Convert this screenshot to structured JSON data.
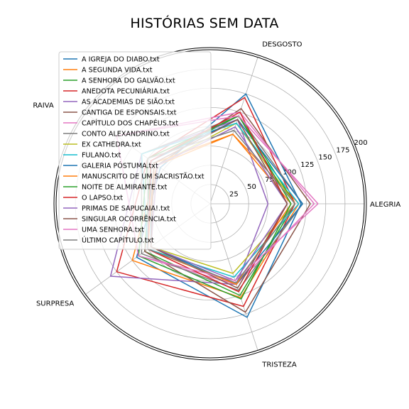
{
  "chart_data": {
    "type": "radar",
    "title": "HISTÓRIAS SEM DATA",
    "axes": [
      "ALEGRIA",
      "DESGOSTO",
      "RAIVA",
      "SURPRESA",
      "TRISTEZA"
    ],
    "rticks": [
      25,
      50,
      75,
      100,
      125,
      150,
      175,
      200
    ],
    "rlim": [
      0,
      200
    ],
    "grid": true,
    "legend_position": "upper-left",
    "series": [
      {
        "name": "A IGREJA DO DIABO.txt",
        "color": "#1f77b4",
        "values": [
          118,
          150,
          80,
          118,
          155
        ]
      },
      {
        "name": "A SEGUNDA VIDA.txt",
        "color": "#ff7f0e",
        "values": [
          115,
          95,
          85,
          125,
          128
        ]
      },
      {
        "name": "A SENHORA DO GALVÃO.txt",
        "color": "#2ca02c",
        "values": [
          110,
          120,
          95,
          105,
          125
        ]
      },
      {
        "name": "ANEDOTA PECUNIÁRIA.txt",
        "color": "#d62728",
        "values": [
          110,
          145,
          100,
          150,
          140
        ]
      },
      {
        "name": "AS ACADEMIAS DE SIÃO.txt",
        "color": "#9467bd",
        "values": [
          75,
          115,
          110,
          160,
          110
        ]
      },
      {
        "name": "CANTIGA DE ESPONSAIS.txt",
        "color": "#8c564b",
        "values": [
          130,
          130,
          85,
          105,
          148
        ]
      },
      {
        "name": "CAPÍTULO DOS CHAPÉUS.txt",
        "color": "#e377c2",
        "values": [
          135,
          125,
          150,
          115,
          110
        ]
      },
      {
        "name": "CONTO ALEXANDRINO.txt",
        "color": "#7f7f7f",
        "values": [
          120,
          120,
          110,
          110,
          118
        ]
      },
      {
        "name": "EX CATHEDRA.txt",
        "color": "#bcbd22",
        "values": [
          110,
          110,
          85,
          95,
          95
        ]
      },
      {
        "name": "FULANO.txt",
        "color": "#17becf",
        "values": [
          115,
          110,
          110,
          100,
          100
        ]
      },
      {
        "name": "GALERIA PÓSTUMA.txt",
        "color": "#1f77b4",
        "values": [
          120,
          115,
          95,
          95,
          110
        ]
      },
      {
        "name": "MANUSCRITO DE UM SACRISTÃO.txt",
        "color": "#ff7f0e",
        "values": [
          105,
          95,
          90,
          100,
          110
        ]
      },
      {
        "name": "NOITE DE ALMIRANTE.txt",
        "color": "#2ca02c",
        "values": [
          105,
          120,
          100,
          115,
          130
        ]
      },
      {
        "name": "O LAPSO.txt",
        "color": "#d62728",
        "values": [
          100,
          125,
          95,
          100,
          120
        ]
      },
      {
        "name": "PRIMAS DE SAPUCAIA!.txt",
        "color": "#9467bd",
        "values": [
          100,
          105,
          85,
          95,
          105
        ]
      },
      {
        "name": "SINGULAR OCORRÊNCIA.txt",
        "color": "#8c564b",
        "values": [
          100,
          115,
          90,
          95,
          115
        ]
      },
      {
        "name": "UMA SENHORA.txt",
        "color": "#e377c2",
        "values": [
          140,
          120,
          150,
          115,
          105
        ]
      },
      {
        "name": "ÚLTIMO CAPÍTULO.txt",
        "color": "#7f7f7f",
        "values": [
          110,
          100,
          100,
          100,
          108
        ]
      }
    ]
  }
}
